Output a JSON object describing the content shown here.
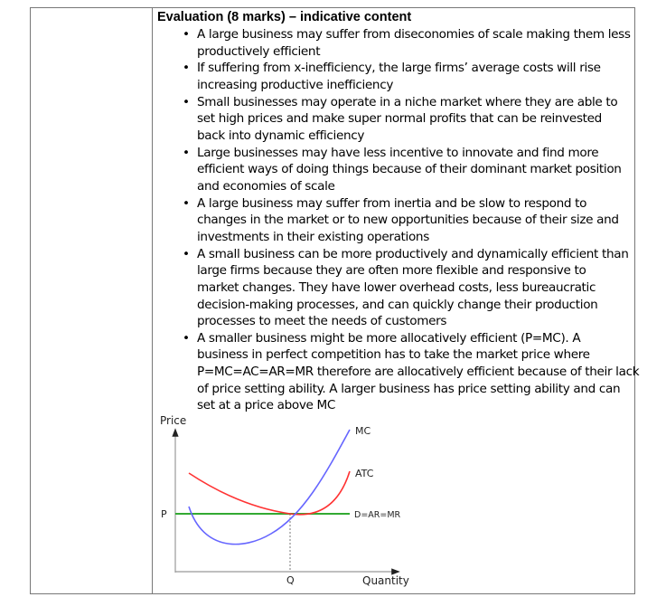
{
  "heading": "Evaluation (8 marks) – indicative content",
  "bullets": [
    {
      "lines": [
        "A large business may suffer from diseconomies of scale making them less",
        "productively efficient"
      ]
    },
    {
      "lines": [
        "If suffering from x-inefficiency, the large firms’ average costs will rise",
        "increasing productive inefficiency"
      ]
    },
    {
      "lines": [
        "Small businesses may operate in a niche market where they are able to",
        "set high prices and make super normal profits that can be reinvested",
        "back into dynamic efficiency"
      ]
    },
    {
      "lines": [
        "Large businesses may have less incentive to innovate and find more",
        "efficient ways of doing things because of their dominant market position",
        "and economies of scale"
      ]
    },
    {
      "lines": [
        "A large business may suffer from inertia and be slow to respond to",
        "changes in the market or to new opportunities because of their size and",
        "investments in their existing operations"
      ]
    },
    {
      "lines": [
        "A small business can be more productively and dynamically efficient than",
        "large firms because they are often more flexible and responsive to",
        "market changes. They have lower overhead costs, less bureaucratic",
        "decision-making processes, and can quickly change their production",
        "processes to meet the needs of customers"
      ]
    },
    {
      "lines": [
        "A smaller business might be more allocatively efficient (P=MC). A",
        "business in perfect competition has to take the market price where",
        "P=MC=AC=AR=MR therefore are allocatively efficient because of their lack",
        "of price setting ability. A larger business has price setting ability and can",
        "set at a price above MC"
      ]
    }
  ],
  "bullet_symbol": "•",
  "diagram": {
    "y_axis_label": "Price",
    "x_axis_label": "Quantity",
    "price_label": "P",
    "quantity_label": "Q",
    "curves": [
      {
        "label": "MC",
        "color": "#6666ff"
      },
      {
        "label": "ATC",
        "color": "#ff3333"
      },
      {
        "label": "D=AR=MR",
        "color": "#33aa33"
      }
    ]
  }
}
